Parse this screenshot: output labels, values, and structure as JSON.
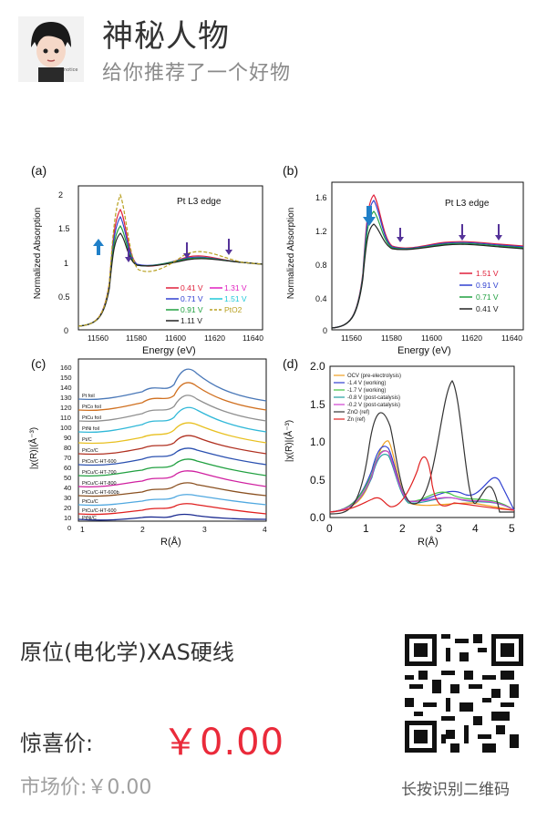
{
  "header": {
    "title": "神秘人物",
    "subtitle": "给你推荐了一个好物"
  },
  "figure": {
    "panels": [
      {
        "id": "a",
        "label": "(a)",
        "edge": "Pt L3 edge",
        "xlabel": "Energy (eV)",
        "ylabel": "Normalized Absorption",
        "xticks": [
          "11560",
          "11580",
          "11600",
          "11620",
          "11640"
        ],
        "yticks": [
          "0",
          "0.5",
          "1",
          "1.5",
          "2"
        ],
        "legend": [
          {
            "label": "0.41 V",
            "color": "#e0203a"
          },
          {
            "label": "1.31 V",
            "color": "#e020c0"
          },
          {
            "label": "0.71 V",
            "color": "#3040d0"
          },
          {
            "label": "1.51 V",
            "color": "#20c8d8"
          },
          {
            "label": "0.91 V",
            "color": "#20a040"
          },
          {
            "label": "PtO2",
            "color": "#b8a020"
          },
          {
            "label": "1.11 V",
            "color": "#222222"
          }
        ]
      },
      {
        "id": "b",
        "label": "(b)",
        "edge": "Pt L3 edge",
        "xlabel": "Energy (eV)",
        "ylabel": "Normalized Absorption",
        "xticks": [
          "11560",
          "11580",
          "11600",
          "11620",
          "11640"
        ],
        "yticks": [
          "0",
          "0.4",
          "0.8",
          "1.2",
          "1.6"
        ],
        "legend": [
          {
            "label": "1.51 V",
            "color": "#e0203a"
          },
          {
            "label": "0.91 V",
            "color": "#3040d0"
          },
          {
            "label": "0.71 V",
            "color": "#20a040"
          },
          {
            "label": "0.41 V",
            "color": "#222222"
          }
        ]
      },
      {
        "id": "c",
        "label": "(c)",
        "xlabel": "R(Å)",
        "ylabel": "|χ(R)|(Å⁻³)",
        "xticks": [
          "1",
          "2",
          "3",
          "4"
        ],
        "yticks": [
          "0",
          "10",
          "20",
          "30",
          "40",
          "50",
          "60",
          "70",
          "80",
          "90",
          "100",
          "110",
          "120",
          "130",
          "140",
          "150",
          "160"
        ],
        "legend": [
          {
            "label": "Pt foil",
            "color": "#4a78b8"
          },
          {
            "label": "PtCo foil",
            "color": "#d07020"
          },
          {
            "label": "PtCu foil",
            "color": "#909090"
          },
          {
            "label": "PtNi foil",
            "color": "#30b8d8"
          },
          {
            "label": "Pt/C",
            "color": "#e8c020"
          },
          {
            "label": "PtCo/C",
            "color": "#b03020"
          },
          {
            "label": "PtCo/C-HT-600",
            "color": "#2a50b0"
          },
          {
            "label": "PtCu/C-HT-700",
            "color": "#20a040"
          },
          {
            "label": "PtCu/C-HT-800",
            "color": "#d020a0"
          },
          {
            "label": "PtCu/C-HT-600b",
            "color": "#8a5020"
          },
          {
            "label": "PtCu/C",
            "color": "#50a8e0"
          },
          {
            "label": "PtCu/C-HT-600",
            "color": "#e02020"
          },
          {
            "label": "PtNi/C",
            "color": "#1a2a90"
          }
        ]
      },
      {
        "id": "d",
        "label": "(d)",
        "xlabel": "R(Å)",
        "ylabel": "|χ(R)|(Å⁻³)",
        "xticks": [
          "0",
          "1",
          "2",
          "3",
          "4",
          "5"
        ],
        "yticks": [
          "0.0",
          "0.5",
          "1.0",
          "1.5",
          "2.0"
        ],
        "legend": [
          {
            "label": "OCV (pre-electrolysis)",
            "color": "#f0a020"
          },
          {
            "label": "-1.4 V (working)",
            "color": "#3040d0"
          },
          {
            "label": "-1.7 V (working)",
            "color": "#40c040"
          },
          {
            "label": "-0.8 V (post-catalysis)",
            "color": "#20a0a0"
          },
          {
            "label": "-0.2 V (post-catalysis)",
            "color": "#d040d0"
          },
          {
            "label": "ZnO (ref)",
            "color": "#333333"
          },
          {
            "label": "Zn (ref)",
            "color": "#e02020"
          }
        ]
      }
    ]
  },
  "product": {
    "name": "原位(电化学)XAS硬线",
    "price_label": "惊喜价:",
    "price_value": "￥0.00",
    "market_price": "市场价:￥0.00"
  },
  "qr": {
    "caption": "长按识别二维码"
  }
}
